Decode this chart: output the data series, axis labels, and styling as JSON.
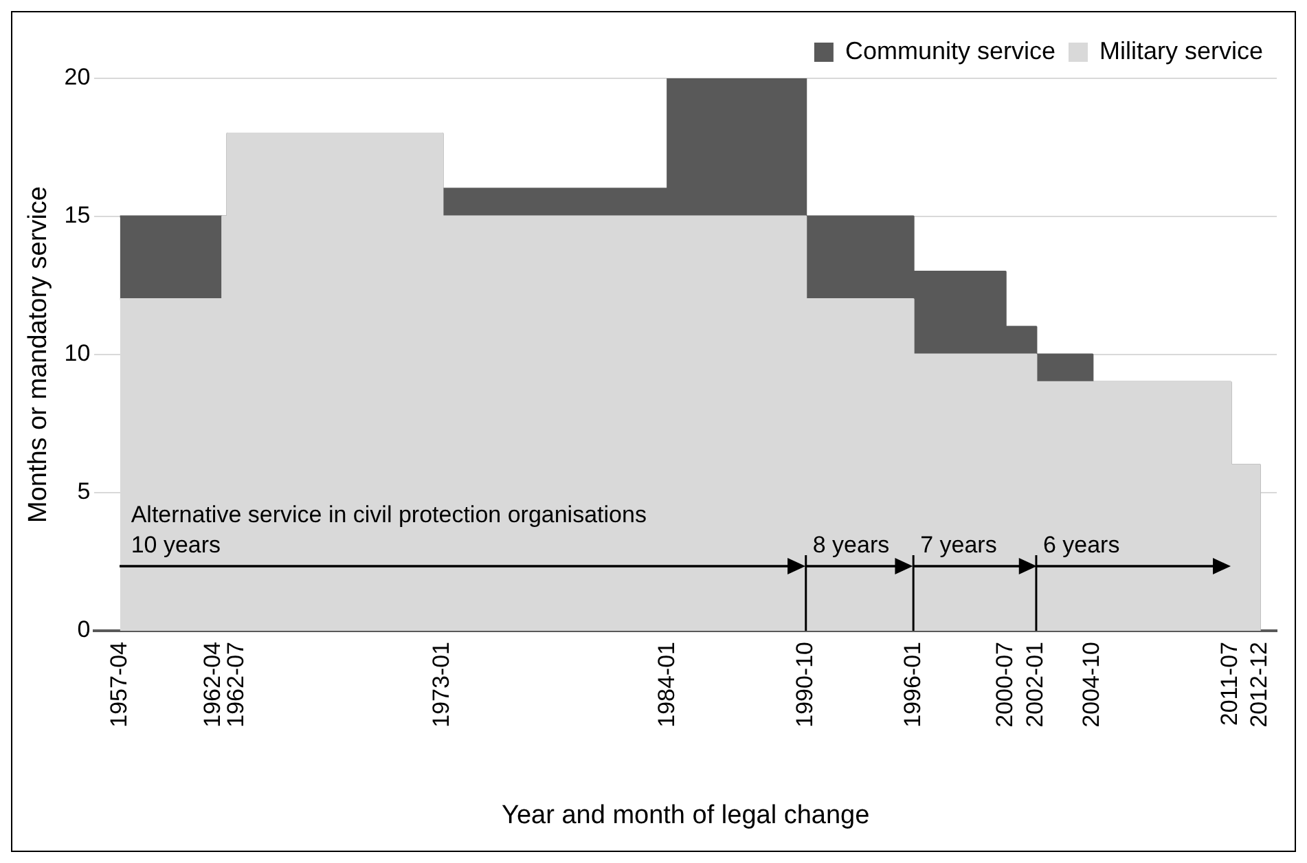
{
  "chart_data": {
    "type": "area",
    "stacked": true,
    "xlabel": "Year and month of legal change",
    "ylabel": "Months or mandatory service",
    "x": [
      "1957-04",
      "1962-04",
      "1962-07",
      "1973-01",
      "1984-01",
      "1990-10",
      "1996-01",
      "2000-07",
      "2002-01",
      "2004-10",
      "2011-07",
      "2012-12"
    ],
    "series": [
      {
        "name": "Military service",
        "color": "#d9d9d9",
        "values": [
          12,
          15,
          18,
          15,
          15,
          12,
          10,
          10,
          9,
          9,
          6,
          0
        ]
      },
      {
        "name": "Community service",
        "color": "#595959",
        "values": [
          3,
          0,
          0,
          1,
          5,
          3,
          3,
          1,
          1,
          0,
          0,
          0
        ]
      }
    ],
    "xlim": [
      "1956-01",
      "2013-10"
    ],
    "xticks": [
      "1957-04",
      "1962-04",
      "1962-07",
      "1973-01",
      "1984-01",
      "1990-10",
      "1996-01",
      "2000-07",
      "2002-01",
      "2004-10",
      "2012-12",
      "2011-07"
    ],
    "ylim": [
      0,
      20
    ],
    "yticks": [
      0,
      5,
      10,
      15,
      20
    ],
    "grid": "y",
    "legend": "top right",
    "marker": "none",
    "annotations": [
      "Alternative service in civil protection organisations",
      "10 years",
      "8 years",
      "7 years",
      "6 years"
    ],
    "ref_lines": [
      {
        "axis": "x",
        "value": "1990-10",
        "color": "#000000"
      },
      {
        "axis": "x",
        "value": "1996-01",
        "color": "#000000"
      },
      {
        "axis": "x",
        "value": "2002-01",
        "color": "#000000"
      }
    ]
  }
}
